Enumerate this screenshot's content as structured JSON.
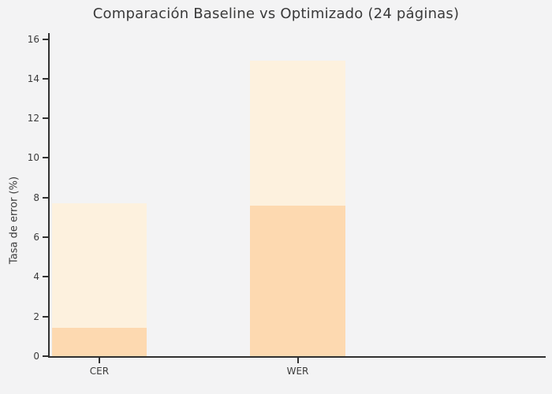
{
  "title": "Comparación Baseline vs Optimizado (24 páginas)",
  "colors": {
    "figure_background": "#f3f3f4",
    "axis": "#303030",
    "text": "#3b3b3b",
    "baseline_bar": "#fdf1de",
    "optimizado_bar": "#fdd9b0"
  },
  "chart_data": {
    "type": "bar",
    "variant": "overlapped",
    "title": "Comparación Baseline vs Optimizado (24 páginas)",
    "categories": [
      "CER",
      "WER"
    ],
    "series": [
      {
        "name": "Baseline",
        "values": [
          7.7,
          14.9
        ],
        "color": "#fdf1de"
      },
      {
        "name": "Optimizado",
        "values": [
          1.45,
          7.6
        ],
        "color": "#fdd9b0"
      }
    ],
    "xlabel": "",
    "ylabel": "Tasa de error (%)",
    "ylim": [
      0,
      16.3
    ],
    "yticks": [
      0,
      2,
      4,
      6,
      8,
      10,
      12,
      14,
      16
    ],
    "grid": false,
    "legend": "none"
  }
}
